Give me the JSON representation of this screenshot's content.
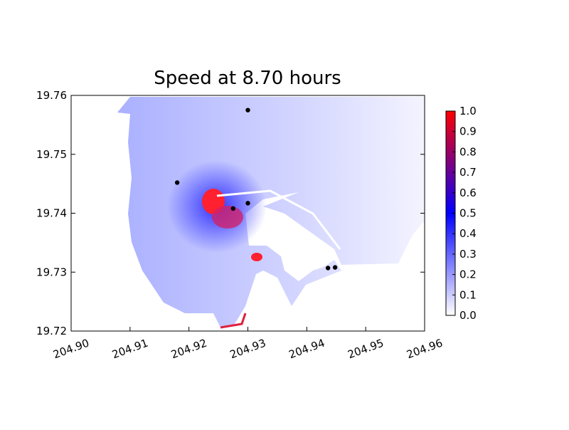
{
  "chart_data": {
    "type": "scatter",
    "title": "Speed at 8.70 hours",
    "x": [
      204.93,
      204.918,
      204.93,
      204.9275,
      204.9436,
      204.9448
    ],
    "values": [
      19.7575,
      19.7452,
      19.7417,
      19.7408,
      19.7307,
      19.7308
    ],
    "color": "#000000",
    "xlim": [
      204.9,
      204.96
    ],
    "xticks": [
      {
        "value": 204.9,
        "label": "204.90"
      },
      204.91,
      204.92,
      204.93,
      204.94,
      204.95,
      204.96
    ],
    "ylim": [
      19.72,
      19.76
    ],
    "yticks": [
      19.72,
      19.73,
      19.74,
      19.75,
      19.76
    ],
    "colorbar": {
      "clim": [
        0,
        1
      ],
      "colormap": [
        "#ffffff",
        "#0000ff",
        "#ff0000"
      ],
      "ticks": [
        {
          "value": 0,
          "label": "0.0"
        },
        0.1,
        0.2,
        0.3,
        0.4,
        0.5,
        0.6,
        0.7,
        0.8,
        0.9,
        {
          "value": 1,
          "label": "1.0"
        }
      ]
    }
  }
}
